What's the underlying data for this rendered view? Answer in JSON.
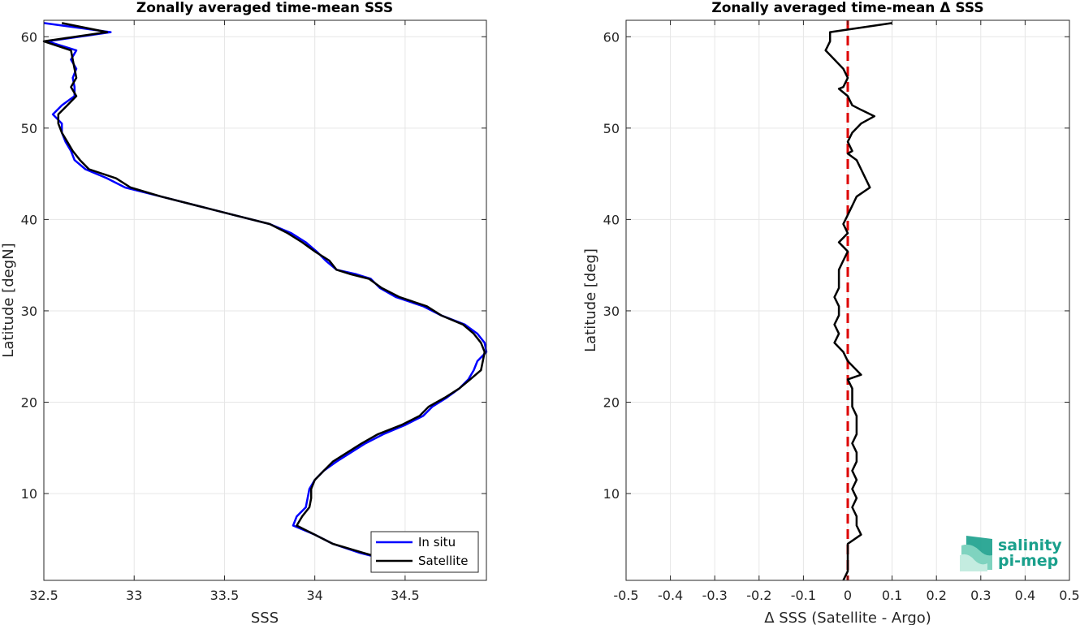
{
  "chart_data": [
    {
      "type": "line",
      "title": "Zonally averaged time-mean SSS",
      "xlabel": "SSS",
      "ylabel": "Latitude [degN]",
      "xlim": [
        32.5,
        34.95
      ],
      "ylim": [
        0.5,
        61.8
      ],
      "xticks": [
        "32.5",
        "33",
        "33.5",
        "34",
        "34.5"
      ],
      "xtick_values": [
        32.5,
        33,
        33.5,
        34,
        34.5
      ],
      "yticks": [
        "10",
        "20",
        "30",
        "40",
        "50",
        "60"
      ],
      "ytick_values": [
        10,
        20,
        30,
        40,
        50,
        60
      ],
      "grid": true,
      "legend_position": "bottom-right",
      "series": [
        {
          "name": "In situ",
          "color": "#0000ff",
          "points": [
            [
              32.5,
              61.5
            ],
            [
              32.87,
              60.5
            ],
            [
              32.52,
              59.5
            ],
            [
              32.68,
              58.5
            ],
            [
              32.65,
              57.5
            ],
            [
              32.68,
              56.5
            ],
            [
              32.66,
              55.5
            ],
            [
              32.67,
              54.5
            ],
            [
              32.67,
              53.5
            ],
            [
              32.6,
              52.5
            ],
            [
              32.55,
              51.5
            ],
            [
              32.6,
              50.5
            ],
            [
              32.6,
              49.5
            ],
            [
              32.62,
              48.5
            ],
            [
              32.65,
              47.5
            ],
            [
              32.67,
              46.5
            ],
            [
              32.73,
              45.5
            ],
            [
              32.85,
              44.5
            ],
            [
              32.95,
              43.5
            ],
            [
              33.15,
              42.5
            ],
            [
              33.35,
              41.5
            ],
            [
              33.55,
              40.5
            ],
            [
              33.75,
              39.5
            ],
            [
              33.87,
              38.5
            ],
            [
              33.95,
              37.5
            ],
            [
              34.01,
              36.5
            ],
            [
              34.06,
              35.5
            ],
            [
              34.12,
              34.5
            ],
            [
              34.23,
              34.0
            ],
            [
              34.31,
              33.5
            ],
            [
              34.36,
              32.5
            ],
            [
              34.45,
              31.5
            ],
            [
              34.6,
              30.5
            ],
            [
              34.7,
              29.5
            ],
            [
              34.83,
              28.5
            ],
            [
              34.9,
              27.5
            ],
            [
              34.94,
              26.5
            ],
            [
              34.95,
              25.5
            ],
            [
              34.9,
              24.5
            ],
            [
              34.88,
              23.5
            ],
            [
              34.85,
              22.5
            ],
            [
              34.8,
              21.5
            ],
            [
              34.73,
              20.5
            ],
            [
              34.65,
              19.5
            ],
            [
              34.6,
              18.5
            ],
            [
              34.5,
              17.5
            ],
            [
              34.38,
              16.5
            ],
            [
              34.28,
              15.5
            ],
            [
              34.2,
              14.5
            ],
            [
              34.12,
              13.5
            ],
            [
              34.05,
              12.5
            ],
            [
              34.0,
              11.5
            ],
            [
              33.97,
              10.5
            ],
            [
              33.96,
              9.5
            ],
            [
              33.95,
              8.5
            ],
            [
              33.9,
              7.5
            ],
            [
              33.88,
              6.5
            ],
            [
              34.0,
              5.5
            ],
            [
              34.1,
              4.5
            ],
            [
              34.25,
              3.5
            ],
            [
              34.45,
              2.5
            ],
            [
              34.65,
              1.5
            ]
          ]
        },
        {
          "name": "Satellite",
          "color": "#000000",
          "points": [
            [
              32.6,
              61.5
            ],
            [
              32.85,
              60.5
            ],
            [
              32.5,
              59.5
            ],
            [
              32.65,
              58.5
            ],
            [
              32.66,
              57.5
            ],
            [
              32.67,
              56.5
            ],
            [
              32.68,
              55.5
            ],
            [
              32.65,
              54.5
            ],
            [
              32.68,
              53.5
            ],
            [
              32.63,
              52.5
            ],
            [
              32.58,
              51.5
            ],
            [
              32.58,
              50.5
            ],
            [
              32.6,
              49.5
            ],
            [
              32.63,
              48.5
            ],
            [
              32.66,
              47.5
            ],
            [
              32.7,
              46.5
            ],
            [
              32.75,
              45.5
            ],
            [
              32.9,
              44.5
            ],
            [
              32.98,
              43.5
            ],
            [
              33.15,
              42.5
            ],
            [
              33.35,
              41.5
            ],
            [
              33.55,
              40.5
            ],
            [
              33.75,
              39.5
            ],
            [
              33.85,
              38.5
            ],
            [
              33.93,
              37.5
            ],
            [
              34.0,
              36.5
            ],
            [
              34.08,
              35.5
            ],
            [
              34.12,
              34.5
            ],
            [
              34.2,
              34.0
            ],
            [
              34.3,
              33.5
            ],
            [
              34.37,
              32.5
            ],
            [
              34.47,
              31.5
            ],
            [
              34.62,
              30.5
            ],
            [
              34.7,
              29.5
            ],
            [
              34.82,
              28.5
            ],
            [
              34.88,
              27.5
            ],
            [
              34.92,
              26.5
            ],
            [
              34.94,
              25.5
            ],
            [
              34.93,
              24.5
            ],
            [
              34.92,
              23.5
            ],
            [
              34.86,
              22.5
            ],
            [
              34.8,
              21.5
            ],
            [
              34.72,
              20.5
            ],
            [
              34.63,
              19.5
            ],
            [
              34.58,
              18.5
            ],
            [
              34.48,
              17.5
            ],
            [
              34.35,
              16.5
            ],
            [
              34.26,
              15.5
            ],
            [
              34.18,
              14.5
            ],
            [
              34.1,
              13.5
            ],
            [
              34.05,
              12.5
            ],
            [
              34.0,
              11.5
            ],
            [
              33.98,
              10.5
            ],
            [
              33.98,
              9.5
            ],
            [
              33.97,
              8.5
            ],
            [
              33.93,
              7.5
            ],
            [
              33.9,
              6.5
            ],
            [
              34.0,
              5.5
            ],
            [
              34.1,
              4.5
            ],
            [
              34.27,
              3.5
            ],
            [
              34.45,
              2.5
            ],
            [
              34.6,
              1.5
            ]
          ]
        }
      ]
    },
    {
      "type": "line",
      "title": "Zonally averaged time-mean Δ SSS",
      "xlabel": "Δ SSS (Satellite - Argo)",
      "ylabel": "Latitude [deg]",
      "xlim": [
        -0.5,
        0.5
      ],
      "ylim": [
        0.5,
        61.8
      ],
      "xticks": [
        "-0.5",
        "-0.4",
        "-0.3",
        "-0.2",
        "-0.1",
        "0",
        "0.1",
        "0.2",
        "0.3",
        "0.4",
        "0.5"
      ],
      "xtick_values": [
        -0.5,
        -0.4,
        -0.3,
        -0.2,
        -0.1,
        0,
        0.1,
        0.2,
        0.3,
        0.4,
        0.5
      ],
      "yticks": [
        "10",
        "20",
        "30",
        "40",
        "50",
        "60"
      ],
      "ytick_values": [
        10,
        20,
        30,
        40,
        50,
        60
      ],
      "grid": true,
      "reference_line": {
        "x": 0,
        "color": "#dd0000",
        "style": "dashed"
      },
      "series": [
        {
          "color": "#000000",
          "points": [
            [
              0.1,
              61.5
            ],
            [
              -0.04,
              60.5
            ],
            [
              -0.04,
              59.5
            ],
            [
              -0.05,
              58.5
            ],
            [
              -0.03,
              57.5
            ],
            [
              -0.01,
              56.5
            ],
            [
              0.0,
              55.5
            ],
            [
              -0.01,
              54.5
            ],
            [
              -0.02,
              54.3
            ],
            [
              0.0,
              53.5
            ],
            [
              0.01,
              52.5
            ],
            [
              0.03,
              52.0
            ],
            [
              0.06,
              51.3
            ],
            [
              0.03,
              50.5
            ],
            [
              0.01,
              49.5
            ],
            [
              0.0,
              48.5
            ],
            [
              0.01,
              47.5
            ],
            [
              0.0,
              47.2
            ],
            [
              0.02,
              46.5
            ],
            [
              0.03,
              45.5
            ],
            [
              0.04,
              44.5
            ],
            [
              0.05,
              43.5
            ],
            [
              0.02,
              42.5
            ],
            [
              0.01,
              41.5
            ],
            [
              0.0,
              40.5
            ],
            [
              -0.01,
              39.5
            ],
            [
              0.0,
              38.5
            ],
            [
              -0.02,
              37.5
            ],
            [
              0.0,
              36.5
            ],
            [
              -0.01,
              35.5
            ],
            [
              -0.02,
              34.5
            ],
            [
              -0.02,
              33.5
            ],
            [
              -0.02,
              32.5
            ],
            [
              -0.03,
              31.5
            ],
            [
              -0.02,
              30.5
            ],
            [
              -0.02,
              29.5
            ],
            [
              -0.03,
              28.5
            ],
            [
              -0.02,
              27.5
            ],
            [
              -0.03,
              26.5
            ],
            [
              -0.01,
              25.5
            ],
            [
              0.0,
              24.5
            ],
            [
              0.03,
              23.0
            ],
            [
              0.0,
              22.5
            ],
            [
              0.01,
              21.5
            ],
            [
              0.01,
              20.5
            ],
            [
              0.01,
              19.5
            ],
            [
              0.02,
              18.5
            ],
            [
              0.02,
              17.5
            ],
            [
              0.02,
              16.5
            ],
            [
              0.01,
              15.5
            ],
            [
              0.02,
              14.5
            ],
            [
              0.02,
              13.5
            ],
            [
              0.01,
              12.5
            ],
            [
              0.02,
              11.5
            ],
            [
              0.01,
              10.5
            ],
            [
              0.02,
              9.5
            ],
            [
              0.01,
              8.5
            ],
            [
              0.02,
              7.5
            ],
            [
              0.02,
              6.5
            ],
            [
              0.03,
              5.5
            ],
            [
              0.0,
              4.5
            ],
            [
              0.0,
              3.5
            ],
            [
              0.0,
              2.5
            ],
            [
              0.0,
              1.5
            ],
            [
              -0.01,
              0.5
            ]
          ]
        }
      ]
    }
  ],
  "legend": {
    "in_situ_label": "In situ",
    "satellite_label": "Satellite"
  },
  "logo": {
    "line1": "salinity",
    "line2": "pi-mep",
    "color": "#1aa08c"
  }
}
